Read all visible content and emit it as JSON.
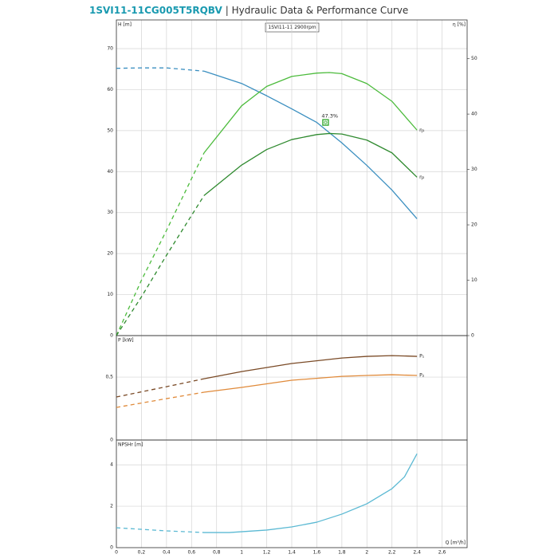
{
  "chart_data": [
    {
      "type": "line",
      "title": "1SVI11-11CG005T5RQBV",
      "subtitle": "| Hydraulic Data & Performance Curve",
      "annotation": "1SVI11-11 2900rpm",
      "ylabel": "H [m]",
      "y2label": "η [%]",
      "xlim": [
        0,
        2.8
      ],
      "xticks": [
        0,
        {
          "value": 0.2,
          "label": "0,2"
        },
        {
          "value": 0.4,
          "label": "0,4"
        },
        {
          "value": 0.6,
          "label": "0,6"
        },
        {
          "value": 0.8,
          "label": "0,8"
        },
        1,
        {
          "value": 1.2,
          "label": "1,2"
        },
        {
          "value": 1.4,
          "label": "1,4"
        },
        {
          "value": 1.6,
          "label": "1,6"
        },
        {
          "value": 1.8,
          "label": "1,8"
        },
        2,
        {
          "value": 2.2,
          "label": "2,2"
        },
        {
          "value": 2.4,
          "label": "2,4"
        },
        {
          "value": 2.6,
          "label": "2,6"
        }
      ],
      "ylim": [
        0,
        77
      ],
      "yticks": [
        0,
        10,
        20,
        30,
        40,
        50,
        60,
        70
      ],
      "y2lim": [
        0,
        57
      ],
      "y2ticks": [
        0,
        10,
        20,
        30,
        40,
        50
      ],
      "grid": true,
      "series": [
        {
          "color": "#3b8fc0",
          "linestyle": "dashed",
          "x": [
            0,
            0.2,
            0.4,
            0.7
          ],
          "values": [
            65.2,
            65.3,
            65.3,
            64.5
          ]
        },
        {
          "color": "#3b8fc0",
          "linestyle": "solid",
          "x": [
            0.7,
            1.0,
            1.2,
            1.4,
            1.6,
            1.8,
            2.0,
            2.2,
            2.4
          ],
          "values": [
            64.5,
            61.5,
            58.5,
            55.3,
            52,
            47,
            41.5,
            35.5,
            28.5
          ]
        },
        {
          "color": "#4cbb3c",
          "linestyle": "dashed",
          "axis": "y2",
          "x": [
            0,
            0.2,
            0.4,
            0.7
          ],
          "values": [
            0,
            10,
            19,
            33
          ]
        },
        {
          "name": "η₁",
          "color": "#4cbb3c",
          "linestyle": "solid",
          "axis": "y2",
          "x": [
            0.7,
            1.0,
            1.2,
            1.4,
            1.6,
            1.7,
            1.8,
            2.0,
            2.2,
            2.4
          ],
          "values": [
            33,
            41.5,
            45,
            46.8,
            47.4,
            47.5,
            47.3,
            45.5,
            42.3,
            37.1
          ]
        },
        {
          "color": "#2f8a2f",
          "linestyle": "dashed",
          "axis": "y2",
          "x": [
            0,
            0.2,
            0.4,
            0.7
          ],
          "values": [
            0,
            7,
            14.5,
            25.3
          ]
        },
        {
          "name": "η₂",
          "color": "#2f8a2f",
          "linestyle": "solid",
          "axis": "y2",
          "x": [
            0.7,
            1.0,
            1.2,
            1.4,
            1.6,
            1.7,
            1.8,
            2.0,
            2.2,
            2.4
          ],
          "values": [
            25.3,
            30.8,
            33.6,
            35.4,
            36.3,
            36.5,
            36.4,
            35.3,
            33,
            28.6
          ]
        }
      ],
      "operating_point": {
        "x": 1.67,
        "y": 52,
        "label": "47.3%",
        "color": "#3aaa35"
      }
    },
    {
      "type": "line",
      "ylabel": "P [kW]",
      "xlim": [
        0,
        2.8
      ],
      "xticks": [
        0,
        0.2,
        0.4,
        0.6,
        0.8,
        1,
        1.2,
        1.4,
        1.6,
        1.8,
        2,
        2.2,
        2.4,
        2.6
      ],
      "ylim": [
        0,
        0.83
      ],
      "yticks": [
        0,
        {
          "value": 0.5,
          "label": "0,5"
        }
      ],
      "grid": true,
      "series": [
        {
          "color": "#7a4a26",
          "linestyle": "dashed",
          "x": [
            0,
            0.4,
            0.7
          ],
          "values": [
            0.342,
            0.424,
            0.487
          ]
        },
        {
          "name": "P₁",
          "color": "#7a4a26",
          "linestyle": "solid",
          "x": [
            0.7,
            1.0,
            1.4,
            1.8,
            2.0,
            2.2,
            2.4
          ],
          "values": [
            0.487,
            0.544,
            0.608,
            0.652,
            0.665,
            0.671,
            0.665
          ]
        },
        {
          "color": "#e08a3a",
          "linestyle": "dashed",
          "x": [
            0,
            0.4,
            0.7
          ],
          "values": [
            0.259,
            0.329,
            0.38
          ]
        },
        {
          "name": "P₂",
          "color": "#e08a3a",
          "linestyle": "solid",
          "x": [
            0.7,
            1.0,
            1.4,
            1.8,
            2.0,
            2.2,
            2.4
          ],
          "values": [
            0.38,
            0.418,
            0.475,
            0.506,
            0.513,
            0.519,
            0.513
          ]
        }
      ]
    },
    {
      "type": "line",
      "ylabel": "NPSHr [m]",
      "xlabel": "Q [m³/h]",
      "xlim": [
        0,
        2.8
      ],
      "xticks": [
        0,
        {
          "value": 0.2,
          "label": "0,2"
        },
        {
          "value": 0.4,
          "label": "0,4"
        },
        {
          "value": 0.6,
          "label": "0,6"
        },
        {
          "value": 0.8,
          "label": "0,8"
        },
        1,
        {
          "value": 1.2,
          "label": "1,2"
        },
        {
          "value": 1.4,
          "label": "1,4"
        },
        {
          "value": 1.6,
          "label": "1,6"
        },
        {
          "value": 1.8,
          "label": "1,8"
        },
        2,
        {
          "value": 2.2,
          "label": "2,2"
        },
        {
          "value": 2.4,
          "label": "2,4"
        },
        {
          "value": 2.6,
          "label": "2,6"
        }
      ],
      "ylim": [
        0,
        5.2
      ],
      "yticks": [
        0,
        2,
        4
      ],
      "grid": true,
      "series": [
        {
          "color": "#5bb9d3",
          "linestyle": "dashed",
          "x": [
            0,
            0.4,
            0.7
          ],
          "values": [
            0.96,
            0.81,
            0.73
          ]
        },
        {
          "color": "#5bb9d3",
          "linestyle": "solid",
          "x": [
            0.7,
            0.9,
            1.2,
            1.4,
            1.6,
            1.8,
            2.0,
            2.2,
            2.3,
            2.4
          ],
          "values": [
            0.73,
            0.73,
            0.85,
            1.0,
            1.23,
            1.62,
            2.12,
            2.85,
            3.42,
            4.54
          ]
        }
      ]
    }
  ]
}
